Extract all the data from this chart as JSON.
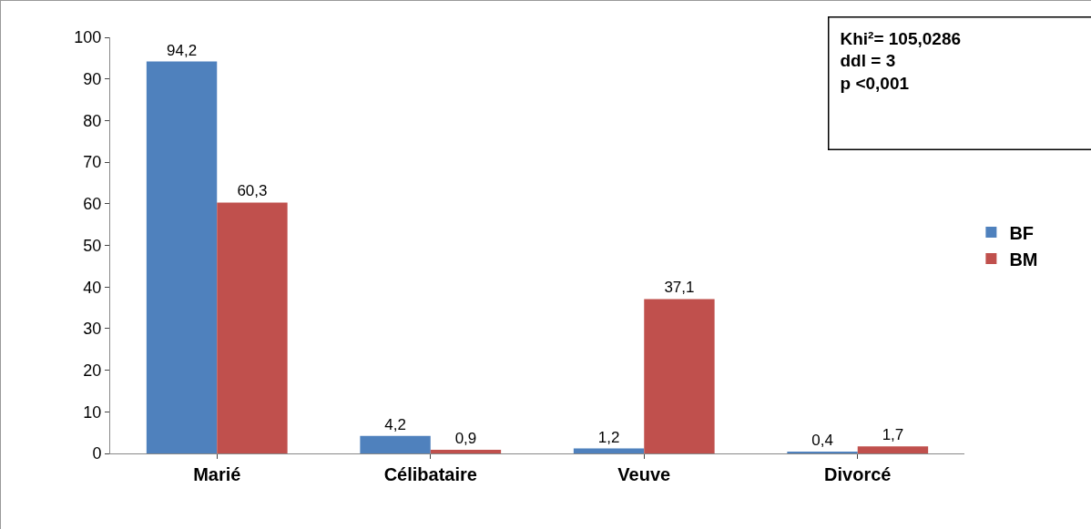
{
  "chart_data": {
    "type": "bar",
    "categories": [
      "Marié",
      "Célibataire",
      "Veuve",
      "Divorcé"
    ],
    "series": [
      {
        "name": "BF",
        "color": "#4f81bd",
        "values": [
          94.2,
          4.2,
          1.2,
          0.4
        ],
        "value_labels": [
          "94,2",
          "4,2",
          "1,2",
          "0,4"
        ]
      },
      {
        "name": "BM",
        "color": "#c0504d",
        "values": [
          60.3,
          0.9,
          37.1,
          1.7
        ],
        "value_labels": [
          "60,3",
          "0,9",
          "37,1",
          "1,7"
        ]
      }
    ],
    "ylim": [
      0,
      100
    ],
    "yticks": [
      0,
      10,
      20,
      30,
      40,
      50,
      60,
      70,
      80,
      90,
      100
    ],
    "grid": false,
    "legend": "right",
    "annotations": [
      "Khi²= 105,0286\nddl = 3\np <0,001"
    ]
  }
}
